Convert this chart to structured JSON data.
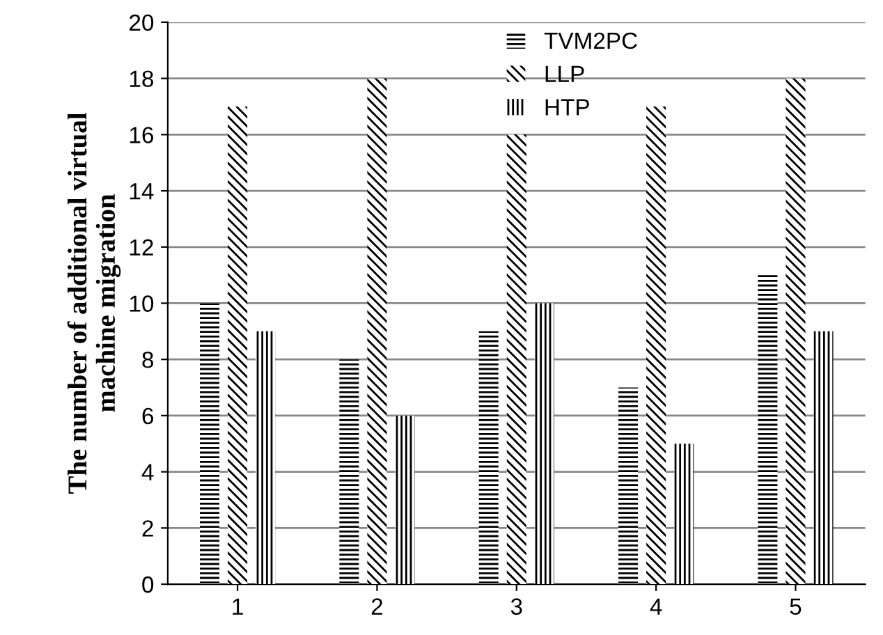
{
  "chart_data": {
    "type": "bar",
    "ylabel": "The number of additional virtual\nmachine migration",
    "categories": [
      "1",
      "2",
      "3",
      "4",
      "5"
    ],
    "series": [
      {
        "name": "TVM2PC",
        "color": "#000000",
        "values": [
          10,
          8,
          9,
          7,
          11
        ]
      },
      {
        "name": "LLP",
        "color": "#000000",
        "values": [
          17,
          18,
          16,
          17,
          18
        ]
      },
      {
        "name": "HTP",
        "color": "#000000",
        "values": [
          9,
          6,
          10,
          5,
          9
        ]
      }
    ],
    "ylim": [
      0,
      20
    ],
    "yticks": [
      0,
      2,
      4,
      6,
      8,
      10,
      12,
      14,
      16,
      18,
      20
    ],
    "grid": "y",
    "legend": "top"
  }
}
